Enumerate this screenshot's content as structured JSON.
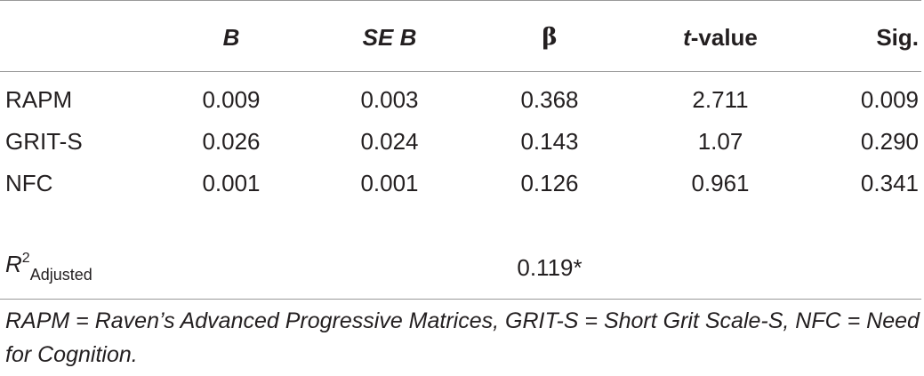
{
  "table": {
    "headers": {
      "b": "B",
      "se_prefix": "SE",
      "se_var": "B",
      "beta": "β",
      "t_var": "t",
      "t_suffix": "-value",
      "sig": "Sig."
    },
    "rows": [
      {
        "label": "RAPM",
        "b": "0.009",
        "se": "0.003",
        "beta": "0.368",
        "t": "2.711",
        "sig": "0.009"
      },
      {
        "label": "GRIT-S",
        "b": "0.026",
        "se": "0.024",
        "beta": "0.143",
        "t": "1.07",
        "sig": "0.290"
      },
      {
        "label": "NFC",
        "b": "0.001",
        "se": "0.001",
        "beta": "0.126",
        "t": "0.961",
        "sig": "0.341"
      }
    ],
    "r2": {
      "var": "R",
      "sup": "2",
      "sub": "Adjusted",
      "value": "0.119*"
    },
    "note": "RAPM = Raven’s Advanced Progressive Matrices, GRIT-S = Short Grit Scale-S, NFC = Need for Cognition."
  }
}
